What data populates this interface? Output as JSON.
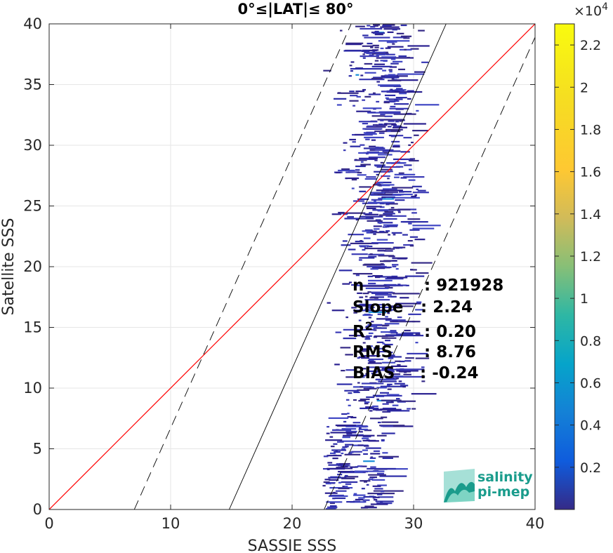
{
  "chart_data": {
    "type": "heatmap",
    "title": "0°≤|LAT|≤ 80°",
    "xlabel": "SASSIE SSS",
    "ylabel": "Satellite SSS",
    "xlim": [
      0,
      40
    ],
    "ylim": [
      0,
      40
    ],
    "xticks": [
      "0",
      "10",
      "20",
      "30",
      "40"
    ],
    "yticks": [
      "0",
      "5",
      "10",
      "15",
      "20",
      "25",
      "30",
      "35",
      "40"
    ],
    "grid": true,
    "colorbar": {
      "exponent_label": "×10",
      "exponent_power": "4",
      "ticks": [
        "0.2",
        "0.4",
        "0.6",
        "0.8",
        "1",
        "1.2",
        "1.4",
        "1.6",
        "1.8",
        "2",
        "2.2"
      ],
      "tick_values": [
        0.2,
        0.4,
        0.6,
        0.8,
        1.0,
        1.2,
        1.4,
        1.6,
        1.8,
        2.0,
        2.2
      ],
      "range": [
        0,
        2.3
      ],
      "colormap": "parula"
    },
    "lines": {
      "identity": {
        "slope": 1,
        "intercept": 0,
        "color": "#ff0000"
      },
      "fit": {
        "slope": 2.24,
        "intercept": -33.2,
        "color": "#000000"
      },
      "fit_offset_dashed": 17.5
    },
    "stats": [
      {
        "label": "n",
        "value": ": 921928"
      },
      {
        "label": "Slope",
        "value": ": 2.24"
      },
      {
        "label": "R",
        "sup": "2",
        "value": ": 0.20"
      },
      {
        "label": "RMS",
        "value": ": 8.76"
      },
      {
        "label": "BIAS",
        "value": ": -0.24"
      }
    ],
    "density_summary": "Dense vertical band of low counts between SASSIE SSS 23 and 31 spanning Satellite SSS 0 to 40, concentrated around 25-29"
  },
  "logo": {
    "line1": "salinity",
    "line2": "pi-mep",
    "color": "#1a9c8c"
  }
}
